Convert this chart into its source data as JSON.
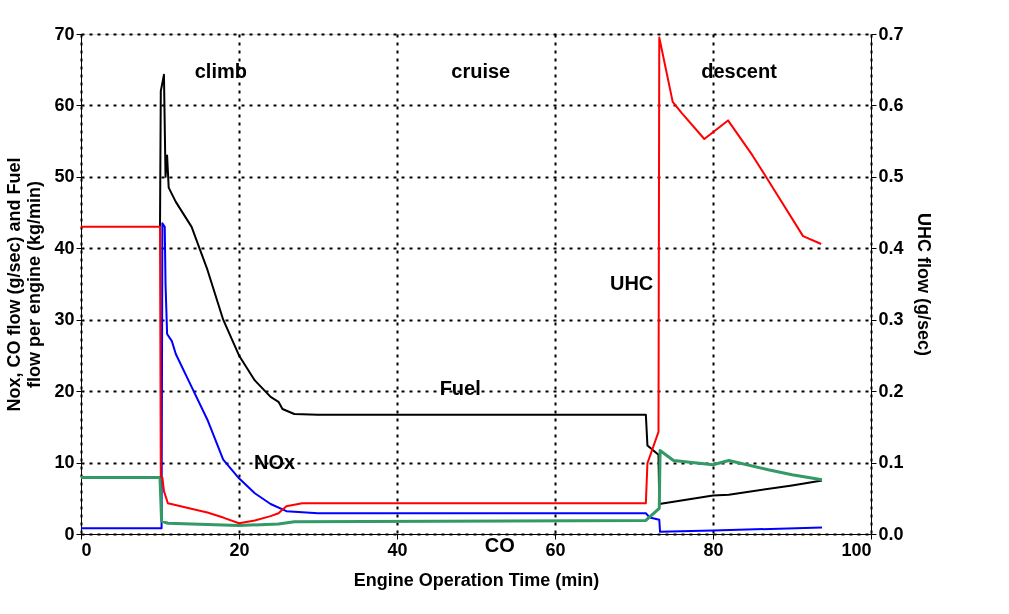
{
  "chart_data": {
    "type": "line",
    "xlabel": "Engine Operation Time (min)",
    "ylabel": "Nox, CO flow (g/sec) and Fuel\nflow per engine (kg/min)",
    "y2label": "UHC flow (g/sec)",
    "xlim": [
      0,
      100
    ],
    "xticks": [
      0,
      20,
      40,
      60,
      80,
      100
    ],
    "ylim": [
      0,
      70
    ],
    "yticks": [
      0,
      10,
      20,
      30,
      40,
      50,
      60,
      70
    ],
    "y2lim": [
      0,
      0.7
    ],
    "y2ticks": [
      {
        "value": 0,
        "label": "0.0"
      },
      0.1,
      0.2,
      0.3,
      0.4,
      0.5,
      0.6,
      0.7
    ],
    "grid": true,
    "series": [
      {
        "name": "Fuel",
        "color": "#000000",
        "x": [
          10,
          10.1,
          10.5,
          10.7,
          10.9,
          11.1,
          12,
          14,
          16,
          18,
          20,
          22,
          24,
          25,
          25.5,
          27,
          30,
          71.5,
          71.7,
          73.1,
          73.2,
          80,
          82,
          90,
          93.8
        ],
        "values": [
          42.8,
          62,
          64.3,
          50,
          53,
          48.5,
          46.5,
          43,
          37,
          30,
          25,
          21.5,
          19.2,
          18.5,
          17.5,
          16.8,
          16.7,
          16.7,
          12.4,
          11.1,
          4.2,
          5.4,
          5.5,
          6.8,
          7.5
        ]
      },
      {
        "name": "NOx",
        "color": "#0000ff",
        "x": [
          0,
          10.2,
          10.3,
          10.6,
          10.7,
          10.9,
          11.5,
          12,
          14,
          16,
          18,
          20,
          22,
          24,
          26,
          30,
          71.5,
          72,
          73.2,
          73.3,
          80,
          93.8
        ],
        "values": [
          0.8,
          0.8,
          43.5,
          43,
          35,
          28,
          27,
          25.2,
          20.6,
          16,
          10.4,
          7.8,
          5.7,
          4.2,
          3.2,
          2.9,
          2.9,
          2.3,
          2,
          0.3,
          0.5,
          0.9
        ]
      },
      {
        "name": "CO",
        "color": "#339966",
        "x": [
          0,
          10,
          10.2,
          11,
          20,
          25,
          27,
          71.5,
          73.2,
          73.3,
          75,
          80,
          82,
          87,
          90,
          93.8
        ],
        "values": [
          7.9,
          7.9,
          1.8,
          1.5,
          1.2,
          1.4,
          1.7,
          1.9,
          3.6,
          11.7,
          10.3,
          9.7,
          10.3,
          9.0,
          8.3,
          7.6
        ]
      },
      {
        "name": "UHC",
        "color": "#ff0000",
        "axis": "y2",
        "x": [
          0,
          10,
          10.1,
          10.3,
          10.5,
          11,
          13.7,
          16,
          18,
          20,
          22,
          24,
          25,
          26,
          28,
          71.5,
          71.7,
          73.1,
          73.2,
          74.9,
          76,
          78.9,
          81.9,
          85,
          87,
          91.4,
          93.7
        ],
        "values": [
          0.43,
          0.43,
          0.08,
          0.079,
          0.06,
          0.043,
          0.036,
          0.03,
          0.023,
          0.015,
          0.019,
          0.025,
          0.029,
          0.039,
          0.043,
          0.043,
          0.099,
          0.143,
          0.695,
          0.605,
          0.59,
          0.553,
          0.579,
          0.53,
          0.495,
          0.417,
          0.406
        ]
      }
    ],
    "annotations": [
      "climb",
      "cruise",
      "descent"
    ]
  }
}
